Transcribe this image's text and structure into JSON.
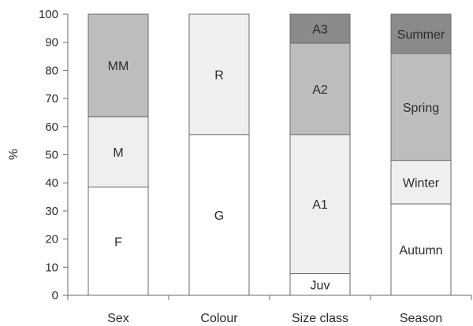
{
  "chart_data": {
    "type": "bar",
    "stacked": true,
    "percent": true,
    "ylabel": "%",
    "xlabel": "",
    "title": "",
    "ylim": [
      0,
      100
    ],
    "yticks": [
      0,
      10,
      20,
      30,
      40,
      50,
      60,
      70,
      80,
      90,
      100
    ],
    "grid": false,
    "categories": [
      "Sex",
      "Colour",
      "Size class",
      "Season"
    ],
    "bars": [
      {
        "category": "Sex",
        "segments": [
          {
            "label": "F",
            "value": 38.5,
            "color": "#ffffff"
          },
          {
            "label": "M",
            "value": 25,
            "color": "#efefef"
          },
          {
            "label": "MM",
            "value": 36.5,
            "color": "#bdbdbd"
          }
        ]
      },
      {
        "category": "Colour",
        "segments": [
          {
            "label": "G",
            "value": 57.2,
            "color": "#ffffff"
          },
          {
            "label": "R",
            "value": 42.8,
            "color": "#efefef"
          }
        ]
      },
      {
        "category": "Size class",
        "segments": [
          {
            "label": "Juv",
            "value": 7.7,
            "color": "#ffffff"
          },
          {
            "label": "A1",
            "value": 49.5,
            "color": "#efefef"
          },
          {
            "label": "A2",
            "value": 32.5,
            "color": "#bdbdbd"
          },
          {
            "label": "A3",
            "value": 10.3,
            "color": "#8a8a8a"
          }
        ]
      },
      {
        "category": "Season",
        "segments": [
          {
            "label": "Autumn",
            "value": 32.5,
            "color": "#ffffff"
          },
          {
            "label": "Winter",
            "value": 15.5,
            "color": "#efefef"
          },
          {
            "label": "Spring",
            "value": 38,
            "color": "#bdbdbd"
          },
          {
            "label": "Summer",
            "value": 14,
            "color": "#8a8a8a"
          }
        ]
      }
    ]
  }
}
